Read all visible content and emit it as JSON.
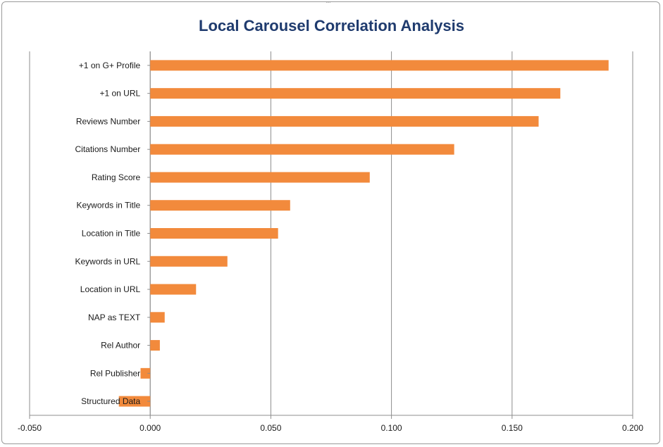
{
  "chart_data": {
    "type": "bar",
    "orientation": "horizontal",
    "title": "Local Carousel Correlation Analysis",
    "categories": [
      "+1 on G+ Profile",
      "+1 on URL",
      "Reviews Number",
      "Citations Number",
      "Rating Score",
      "Keywords in Title",
      "Location in Title",
      "Keywords in URL",
      "Location in URL",
      "NAP as TEXT",
      "Rel Author",
      "Rel Publisher",
      "Structured Data"
    ],
    "values": [
      0.19,
      0.17,
      0.161,
      0.126,
      0.091,
      0.058,
      0.053,
      0.032,
      0.019,
      0.006,
      0.004,
      -0.004,
      -0.013
    ],
    "xlim": [
      -0.05,
      0.2
    ],
    "xticks": [
      "-0.050",
      "0.000",
      "0.050",
      "0.100",
      "0.150",
      "0.200"
    ],
    "xtick_values": [
      -0.05,
      0.0,
      0.05,
      0.1,
      0.15,
      0.2
    ],
    "grid": "vertical major gridlines",
    "legend": "none",
    "bar_color": "#f28a3c",
    "title_color": "#1f3b6e"
  }
}
